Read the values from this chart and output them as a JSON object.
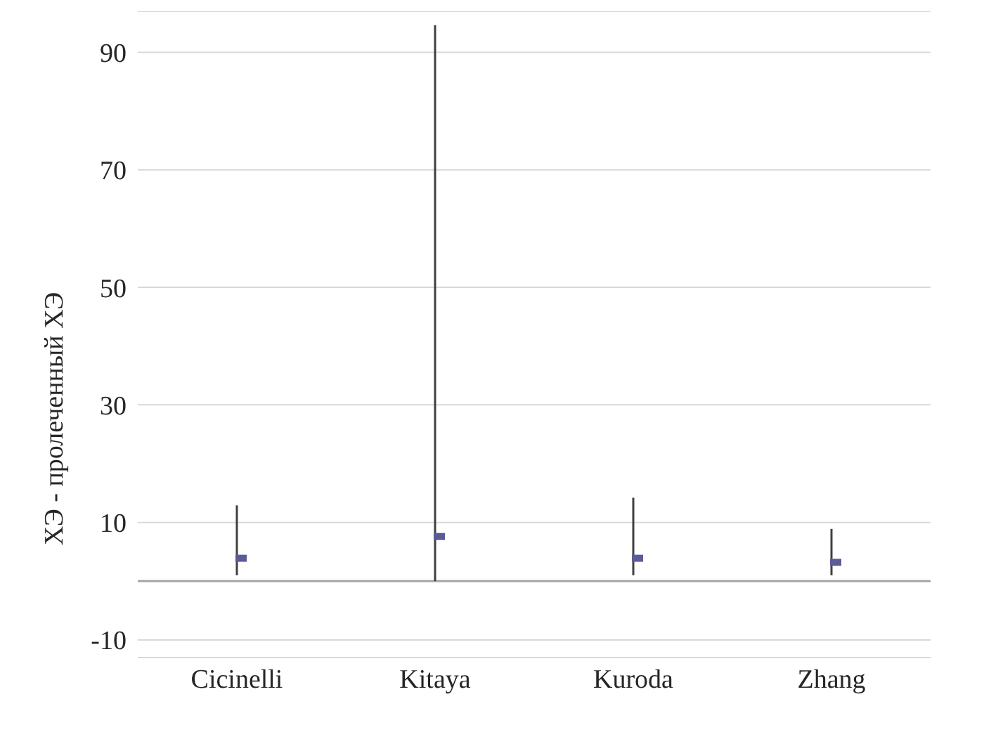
{
  "chart_data": {
    "type": "scatter",
    "ylabel": "ХЭ - пролеченный ХЭ",
    "categories": [
      "Cicinelli",
      "Kitaya",
      "Kuroda",
      "Zhang"
    ],
    "series": [
      {
        "color": "#5b5b9a",
        "values": [
          3.9,
          7.6,
          3.9,
          3.2
        ],
        "errors": [
          [
            1.0,
            12.9
          ],
          [
            0,
            94.6
          ],
          [
            1.0,
            14.2
          ],
          [
            1.0,
            8.9
          ]
        ]
      }
    ],
    "ylim": [
      -13,
      97
    ],
    "yticks": [
      -10,
      10,
      30,
      50,
      70,
      90
    ],
    "grid": "y",
    "marker": "square",
    "legend": false,
    "ref_lines": [
      {
        "axis": "y",
        "value": 0,
        "color": "#a6a6a6"
      }
    ]
  }
}
